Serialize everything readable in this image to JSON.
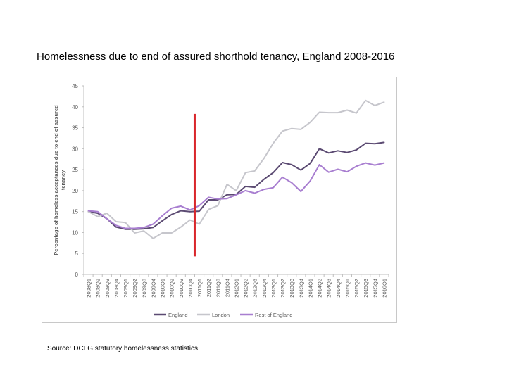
{
  "page": {
    "title": "Homelessness due to end of assured shorthold tenancy, England 2008-2016",
    "source": "Source: DCLG statutory homelessness statistics"
  },
  "colors": {
    "england": "#5b4a72",
    "london": "#c6c6cc",
    "rest_of_england": "#a87ed0",
    "marker": "#d9262b",
    "axis": "#bfbfbf",
    "tick_text": "#595959"
  },
  "chart_data": {
    "type": "line",
    "title": "",
    "xlabel": "",
    "ylabel": "Percentage of homeless acceptances due to end of assured tenancy",
    "ylim": [
      0,
      45
    ],
    "yticks": [
      0,
      5,
      10,
      15,
      20,
      25,
      30,
      35,
      40,
      45
    ],
    "grid": false,
    "legend_position": "bottom",
    "categories": [
      "2008 Q1",
      "2008 Q2",
      "2008 Q3",
      "2008 Q4",
      "2009 Q1",
      "2009 Q2",
      "2009 Q3",
      "2009 Q4",
      "2010 Q1",
      "2010 Q2",
      "2010 Q3",
      "2010 Q4",
      "2011 Q1",
      "2011 Q2",
      "2011 Q3",
      "2011 Q4",
      "2012 Q1",
      "2012 Q2",
      "2012 Q3",
      "2012 Q4",
      "2013 Q1",
      "2013 Q2",
      "2013 Q3",
      "2013 Q4",
      "2014 Q1",
      "2014 Q2",
      "2014 Q3",
      "2014 Q4",
      "2015 Q1",
      "2015 Q2",
      "2015 Q3",
      "2015 Q4",
      "2016 Q1"
    ],
    "series": [
      {
        "name": "England",
        "color_key": "england",
        "values": [
          15,
          14.6,
          13.3,
          11.3,
          10.8,
          10.8,
          10.9,
          11.2,
          12.8,
          14.3,
          15.2,
          15.0,
          15.1,
          17.8,
          17.8,
          19.0,
          19.1,
          21.0,
          20.8,
          22.7,
          24.3,
          26.7,
          26.2,
          24.9,
          26.5,
          30.0,
          29.0,
          29.5,
          29.1,
          29.7,
          31.3,
          31.2,
          31.5
        ]
      },
      {
        "name": "London",
        "color_key": "london",
        "values": [
          15,
          13.8,
          14.6,
          12.6,
          12.4,
          9.9,
          10.4,
          8.6,
          9.9,
          9.9,
          11.3,
          13.0,
          12.0,
          15.5,
          16.4,
          21.5,
          20.0,
          24.3,
          24.7,
          27.7,
          31.3,
          34.2,
          34.8,
          34.6,
          36.3,
          38.7,
          38.6,
          38.6,
          39.2,
          38.5,
          41.5,
          40.3,
          41.1
        ]
      },
      {
        "name": "Rest of England",
        "color_key": "rest_of_england",
        "values": [
          15.2,
          15.0,
          13.3,
          11.7,
          11.0,
          11.0,
          11.2,
          12.0,
          14.0,
          15.8,
          16.3,
          15.4,
          16.4,
          18.4,
          18.0,
          18.1,
          19.0,
          20.0,
          19.4,
          20.3,
          20.7,
          23.2,
          21.9,
          19.8,
          22.3,
          26.2,
          24.4,
          25.1,
          24.5,
          25.8,
          26.6,
          26.1,
          26.6
        ]
      }
    ],
    "annotation": {
      "type": "vertical-line",
      "at_category": "2010 Q4",
      "y_from": 4.3,
      "y_to": 38.3,
      "color_key": "marker"
    }
  }
}
